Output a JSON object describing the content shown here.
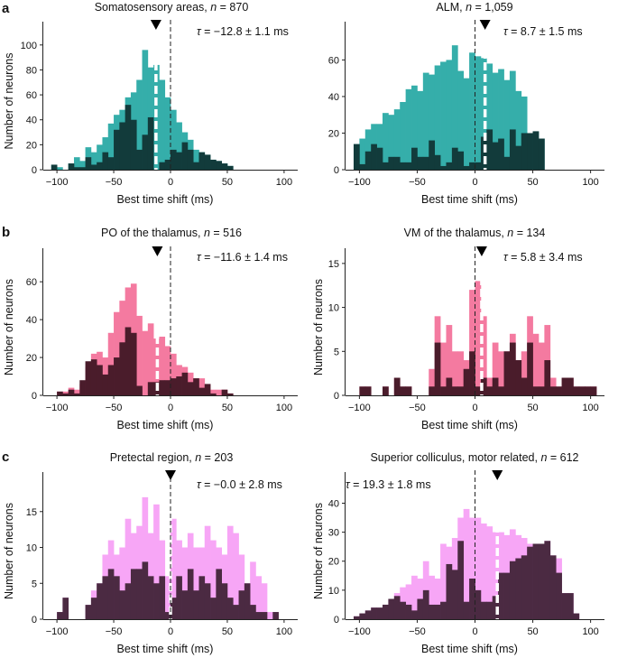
{
  "figure": {
    "panel_letters": [
      "a",
      "b",
      "c"
    ],
    "colors": {
      "teal": "#35aeaa",
      "dark_teal": "#123b3b",
      "pink": "#f47aa0",
      "dark_maroon": "#4a1c2b",
      "light_violet": "#f7a6f6",
      "dark_purple": "#4b2a42"
    }
  },
  "chart_data": [
    {
      "type": "bar",
      "subtype": "overlaid-histogram",
      "panel": "a",
      "title": "Somatosensory areas, n = 870",
      "title_main": "Somatosensory areas, ",
      "n_label": "n",
      "n_value": " = 870",
      "xlabel": "Best time shift (ms)",
      "ylabel": "Number of neurons",
      "xlim": [
        -112,
        112
      ],
      "ylim": [
        0,
        110
      ],
      "xticks": [
        -100,
        -50,
        0,
        50,
        100
      ],
      "yticks": [
        0,
        20,
        40,
        60,
        80,
        100
      ],
      "bin_start": -105,
      "bin_width": 5,
      "tau_prefix": "τ",
      "tau_text": " = −12.8 ± 1.1 ms",
      "marker_x": -12.8,
      "series": [
        {
          "name": "all",
          "color": "#35aeaa",
          "values": [
            4,
            2,
            0,
            5,
            10,
            7,
            18,
            14,
            20,
            26,
            37,
            44,
            48,
            58,
            62,
            72,
            96,
            82,
            84,
            72,
            58,
            48,
            38,
            30,
            24,
            16,
            14,
            12,
            8,
            7,
            5,
            3,
            0,
            0,
            0,
            0,
            0,
            0,
            0,
            0,
            0,
            0
          ]
        },
        {
          "name": "subset",
          "color": "#123b3b",
          "values": [
            4,
            0,
            0,
            5,
            2,
            2,
            10,
            4,
            6,
            14,
            10,
            32,
            38,
            52,
            40,
            16,
            28,
            42,
            0,
            6,
            8,
            16,
            14,
            22,
            16,
            6,
            14,
            12,
            8,
            7,
            5,
            3,
            0,
            0,
            0,
            0,
            0,
            0,
            0,
            0,
            0,
            0
          ]
        }
      ]
    },
    {
      "type": "bar",
      "subtype": "overlaid-histogram",
      "panel": "a",
      "title": "ALM, n = 1,059",
      "title_main": "ALM, ",
      "n_label": "n",
      "n_value": " = 1,059",
      "xlabel": "Best time shift (ms)",
      "ylabel": "",
      "xlim": [
        -112,
        112
      ],
      "ylim": [
        0,
        75
      ],
      "xticks": [
        -100,
        -50,
        0,
        50,
        100
      ],
      "yticks": [
        0,
        20,
        40,
        60
      ],
      "bin_start": -105,
      "bin_width": 5,
      "tau_prefix": "τ",
      "tau_text": " = 8.7 ± 1.5 ms",
      "marker_x": 8.7,
      "series": [
        {
          "name": "all",
          "color": "#35aeaa",
          "values": [
            14,
            17,
            22,
            25,
            25,
            31,
            30,
            33,
            37,
            44,
            46,
            43,
            53,
            52,
            57,
            59,
            60,
            68,
            54,
            50,
            64,
            62,
            61,
            58,
            53,
            55,
            49,
            54,
            43,
            40,
            20,
            21,
            17,
            0,
            0,
            0,
            0,
            0,
            0,
            0,
            0,
            0
          ]
        },
        {
          "name": "subset",
          "color": "#123b3b",
          "values": [
            14,
            3,
            10,
            14,
            12,
            4,
            7,
            7,
            4,
            4,
            12,
            7,
            7,
            16,
            8,
            2,
            4,
            12,
            10,
            2,
            4,
            4,
            18,
            22,
            15,
            17,
            7,
            22,
            13,
            20,
            20,
            21,
            17,
            0,
            0,
            0,
            0,
            0,
            0,
            0,
            0,
            0
          ]
        }
      ]
    },
    {
      "type": "bar",
      "subtype": "overlaid-histogram",
      "panel": "b",
      "title": "PO of the thalamus, n = 516",
      "title_main": "PO of the thalamus, ",
      "n_label": "n",
      "n_value": " = 516",
      "xlabel": "Best time shift (ms)",
      "ylabel": "Number of neurons",
      "xlim": [
        -112,
        112
      ],
      "ylim": [
        0,
        72
      ],
      "xticks": [
        -100,
        -50,
        0,
        50,
        100
      ],
      "yticks": [
        0,
        20,
        40,
        60
      ],
      "bin_start": -105,
      "bin_width": 5,
      "tau_prefix": "τ",
      "tau_text": " = −11.6 ± 1.4 ms",
      "marker_x": -11.6,
      "series": [
        {
          "name": "all",
          "color": "#f47aa0",
          "values": [
            0,
            2,
            2,
            4,
            3,
            6,
            15,
            22,
            23,
            20,
            33,
            44,
            50,
            57,
            59,
            42,
            34,
            38,
            30,
            31,
            26,
            22,
            16,
            15,
            12,
            9,
            9,
            6,
            3,
            3,
            3,
            1,
            0,
            0,
            0,
            0,
            0,
            0,
            0,
            0,
            0,
            0
          ]
        },
        {
          "name": "subset",
          "color": "#4a1c2b",
          "values": [
            0,
            2,
            1,
            3,
            1,
            8,
            18,
            19,
            16,
            11,
            16,
            20,
            28,
            36,
            33,
            5,
            0,
            7,
            7,
            8,
            8,
            9,
            10,
            12,
            7,
            9,
            4,
            6,
            1,
            0,
            3,
            1,
            0,
            0,
            0,
            0,
            0,
            0,
            0,
            0,
            0,
            0
          ]
        }
      ]
    },
    {
      "type": "bar",
      "subtype": "overlaid-histogram",
      "panel": "b",
      "title": "VM of the thalamus, n = 134",
      "title_main": "VM of the thalamus, ",
      "n_label": "n",
      "n_value": " = 134",
      "xlabel": "Best time shift (ms)",
      "ylabel": "Number of neurons",
      "xlim": [
        -112,
        112
      ],
      "ylim": [
        0,
        15.5
      ],
      "xticks": [
        -100,
        -50,
        0,
        50,
        100
      ],
      "yticks": [
        0,
        5,
        10,
        15
      ],
      "bin_start": -105,
      "bin_width": 5,
      "tau_prefix": "τ",
      "tau_text": " = 5.8 ± 3.4 ms",
      "marker_x": 5.8,
      "series": [
        {
          "name": "all",
          "color": "#f47aa0",
          "values": [
            0,
            1,
            1,
            0,
            0,
            1,
            0,
            2,
            1,
            1,
            0,
            0,
            0,
            3,
            9,
            6,
            8,
            5,
            5,
            4,
            12,
            13,
            9,
            2,
            6,
            5,
            5,
            7,
            4,
            5,
            9,
            7,
            6,
            8,
            2,
            1,
            2,
            2,
            1,
            1,
            1,
            1
          ]
        },
        {
          "name": "subset",
          "color": "#4a1c2b",
          "values": [
            0,
            1,
            1,
            0,
            0,
            1,
            0,
            2,
            1,
            1,
            0,
            0,
            0,
            1,
            6,
            1,
            2,
            1,
            1,
            3,
            5,
            1,
            2,
            1,
            2,
            1,
            5,
            6,
            4,
            2,
            6,
            1,
            1,
            4,
            1,
            1,
            2,
            2,
            1,
            1,
            1,
            1
          ]
        }
      ]
    },
    {
      "type": "bar",
      "subtype": "overlaid-histogram",
      "panel": "c",
      "title": "Pretectal region, n = 203",
      "title_main": "Pretectal region, ",
      "n_label": "n",
      "n_value": " = 203",
      "xlabel": "Best time shift (ms)",
      "ylabel": "Number of neurons",
      "xlim": [
        -112,
        112
      ],
      "ylim": [
        0,
        19
      ],
      "xticks": [
        -100,
        -50,
        0,
        50,
        100
      ],
      "yticks": [
        0,
        5,
        10,
        15
      ],
      "bin_start": -105,
      "bin_width": 5,
      "tau_prefix": "τ",
      "tau_text": " = −0.0 ± 2.8 ms",
      "marker_x": 0.0,
      "series": [
        {
          "name": "all",
          "color": "#f7a6f6",
          "values": [
            0,
            1,
            3,
            0,
            0,
            0,
            2,
            4,
            5,
            9,
            11,
            9,
            10,
            14,
            12,
            13,
            17,
            12,
            16,
            11,
            6,
            14,
            11,
            10,
            12,
            10,
            10,
            13,
            11,
            10,
            9,
            13,
            12,
            9,
            5,
            8,
            6,
            5,
            1,
            1,
            0,
            0
          ]
        },
        {
          "name": "subset",
          "color": "#4b2a42",
          "values": [
            0,
            1,
            3,
            0,
            0,
            0,
            2,
            3,
            5,
            6,
            7,
            6,
            4,
            5,
            7,
            7,
            8,
            6,
            5,
            6,
            1,
            3,
            6,
            4,
            7,
            4,
            6,
            5,
            3,
            7,
            5,
            3,
            2,
            4,
            5,
            2,
            1,
            1,
            0,
            1,
            0,
            0
          ]
        }
      ]
    },
    {
      "type": "bar",
      "subtype": "overlaid-histogram",
      "panel": "c",
      "title": "Superior colliculus, motor related, n = 612",
      "title_main": "Superior colliculus, motor related, ",
      "n_label": "n",
      "n_value": " = 612",
      "xlabel": "Best time shift (ms)",
      "ylabel": "Number of neurons",
      "xlim": [
        -112,
        112
      ],
      "ylim": [
        0,
        47
      ],
      "xticks": [
        -100,
        -50,
        0,
        50,
        100
      ],
      "yticks": [
        0,
        10,
        20,
        30,
        40
      ],
      "bin_start": -105,
      "bin_width": 5,
      "tau_prefix": "τ",
      "tau_text": " = 19.3 ± 1.8 ms",
      "marker_x": 19.3,
      "series": [
        {
          "name": "all",
          "color": "#f7a6f6",
          "values": [
            1,
            2,
            3,
            4,
            4,
            5,
            7,
            9,
            11,
            12,
            15,
            14,
            20,
            15,
            14,
            26,
            25,
            28,
            35,
            38,
            35,
            35,
            33,
            32,
            30,
            30,
            29,
            31,
            29,
            28,
            26,
            26,
            25,
            27,
            22,
            21,
            9,
            9,
            2,
            0,
            0,
            0
          ]
        },
        {
          "name": "subset",
          "color": "#4b2a42",
          "values": [
            1,
            2,
            3,
            4,
            4,
            5,
            7,
            8,
            6,
            5,
            3,
            7,
            10,
            5,
            5,
            6,
            19,
            17,
            27,
            6,
            14,
            10,
            6,
            6,
            8,
            16,
            16,
            20,
            21,
            22,
            25,
            26,
            26,
            27,
            22,
            16,
            9,
            9,
            2,
            0,
            0,
            0
          ]
        }
      ]
    }
  ]
}
